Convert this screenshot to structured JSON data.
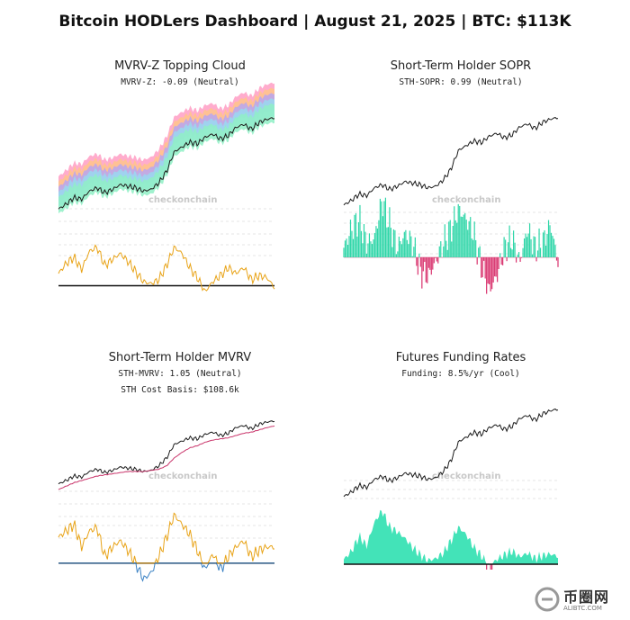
{
  "page": {
    "title": "Bitcoin HODLers Dashboard | August 21, 2025 | BTC: $113K"
  },
  "watermark": "checkonchain",
  "logo": {
    "name": "币圈网",
    "url": "ALIBTC.COM"
  },
  "colors": {
    "price": "#1a1a1a",
    "oscillator": "#e8a317",
    "zero_line": "#111111",
    "sopr_positive": "#2fd6a8",
    "sopr_negative": "#d9336e",
    "cost_basis": "#c9356b",
    "mvrv_negative": "#3b82c4",
    "funding_fill": "#2fe0b0",
    "cloud_bands": [
      "#ff9ec4",
      "#ffc48a",
      "#b9a4f0",
      "#9ad7f0",
      "#8ff0c6"
    ]
  },
  "chart_data": [
    {
      "id": "mvrv",
      "type": "line",
      "title": "MVRV-Z Topping Cloud",
      "subtitle": "MVRV-Z: -0.09 (Neutral)",
      "series": [
        {
          "role": "price",
          "values": [
            57,
            60,
            64,
            63,
            68,
            70,
            67,
            69,
            72,
            71,
            70,
            68,
            69,
            73,
            80,
            92,
            95,
            98,
            97,
            101,
            103,
            100,
            102,
            107,
            109,
            106,
            110,
            112,
            113
          ]
        },
        {
          "role": "mvrv_z",
          "values": [
            0.6,
            1.1,
            1.4,
            0.8,
            1.7,
            1.9,
            1.0,
            1.3,
            1.6,
            1.2,
            0.7,
            0.2,
            0.1,
            0.3,
            1.0,
            1.9,
            1.6,
            0.9,
            0.4,
            -0.3,
            0.2,
            0.5,
            0.9,
            0.6,
            0.9,
            0.3,
            0.5,
            0.4,
            -0.09
          ]
        }
      ]
    },
    {
      "id": "sopr",
      "type": "line",
      "title": "Short-Term Holder SOPR",
      "subtitle": "STH-SOPR: 0.99 (Neutral)",
      "series": [
        {
          "role": "price",
          "values": [
            57,
            60,
            64,
            63,
            68,
            70,
            67,
            69,
            72,
            71,
            70,
            68,
            69,
            73,
            80,
            92,
            95,
            98,
            97,
            101,
            103,
            100,
            102,
            107,
            109,
            106,
            110,
            112,
            113
          ]
        },
        {
          "role": "sth_sopr",
          "values": [
            1.02,
            1.06,
            1.08,
            1.03,
            1.04,
            1.12,
            1.07,
            1.02,
            1.05,
            1.03,
            0.97,
            0.96,
            0.99,
            1.03,
            1.06,
            1.1,
            1.08,
            1.05,
            0.98,
            0.93,
            0.96,
            1.02,
            1.04,
            0.99,
            1.06,
            1.02,
            1.03,
            1.07,
            0.99
          ]
        }
      ]
    },
    {
      "id": "sth_mvrv",
      "type": "line",
      "title": "Short-Term Holder MVRV",
      "subtitle": "STH-MVRV: 1.05 (Neutral)",
      "subtitle2": "STH Cost Basis: $108.6k",
      "series": [
        {
          "role": "price",
          "values": [
            57,
            60,
            64,
            63,
            68,
            70,
            67,
            69,
            72,
            71,
            70,
            68,
            69,
            73,
            80,
            92,
            95,
            98,
            97,
            101,
            103,
            100,
            102,
            107,
            109,
            106,
            110,
            112,
            113
          ]
        },
        {
          "role": "cost_basis",
          "values": [
            52,
            55,
            58,
            60,
            62,
            64,
            65,
            66,
            67,
            68,
            68,
            68,
            69,
            70,
            73,
            80,
            85,
            89,
            91,
            94,
            96,
            97,
            98,
            100,
            102,
            103,
            105,
            107,
            108.6
          ]
        },
        {
          "role": "sth_mvrv",
          "values": [
            1.08,
            1.1,
            1.12,
            1.05,
            1.1,
            1.11,
            1.02,
            1.05,
            1.07,
            1.04,
            1.0,
            0.95,
            0.97,
            1.02,
            1.08,
            1.15,
            1.12,
            1.09,
            1.04,
            0.98,
            1.03,
            0.98,
            1.02,
            1.05,
            1.07,
            1.02,
            1.04,
            1.05,
            1.05
          ]
        }
      ]
    },
    {
      "id": "funding",
      "type": "area",
      "title": "Futures Funding Rates",
      "subtitle": "Funding: 8.5%/yr (Cool)",
      "series": [
        {
          "role": "price",
          "values": [
            57,
            60,
            64,
            63,
            68,
            70,
            67,
            69,
            72,
            71,
            70,
            68,
            69,
            73,
            80,
            92,
            95,
            98,
            97,
            101,
            103,
            100,
            102,
            107,
            109,
            106,
            110,
            112,
            113
          ]
        },
        {
          "role": "funding",
          "values": [
            5,
            14,
            30,
            20,
            45,
            58,
            40,
            35,
            28,
            18,
            10,
            4,
            6,
            12,
            25,
            40,
            32,
            18,
            9,
            -2,
            5,
            10,
            14,
            8,
            12,
            6,
            9,
            11,
            8.5
          ]
        }
      ]
    }
  ]
}
